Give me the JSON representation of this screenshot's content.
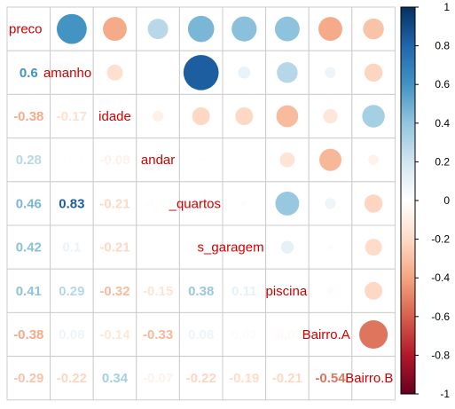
{
  "chart_data": {
    "type": "heatmap",
    "variables": [
      "preco",
      "tamanho",
      "idade",
      "andar",
      "n_quartos",
      "n_garagem",
      "piscina",
      "Bairro.A",
      "Bairro.B"
    ],
    "upper_method": "circle",
    "lower_method": "number",
    "matrix": [
      [
        1,
        0.6,
        -0.38,
        0.28,
        0.46,
        0.42,
        0.41,
        -0.38,
        -0.29
      ],
      [
        0.6,
        1,
        -0.17,
        0.01,
        0.83,
        0.1,
        0.29,
        0.08,
        -0.22
      ],
      [
        -0.38,
        -0.17,
        1,
        -0.08,
        -0.21,
        -0.21,
        -0.32,
        -0.14,
        0.34
      ],
      [
        0.28,
        0.01,
        -0.08,
        1,
        -0.01,
        0.0,
        -0.15,
        -0.33,
        -0.07
      ],
      [
        0.46,
        0.83,
        -0.21,
        -0.01,
        1,
        0.02,
        0.38,
        0.08,
        -0.22
      ],
      [
        0.42,
        0.1,
        -0.21,
        0.0,
        0.02,
        1,
        0.11,
        0.02,
        -0.19
      ],
      [
        0.41,
        0.29,
        -0.32,
        -0.15,
        0.38,
        0.11,
        1,
        -0.03,
        -0.21
      ],
      [
        -0.38,
        0.08,
        -0.14,
        -0.33,
        0.08,
        0.02,
        -0.03,
        1,
        -0.54
      ],
      [
        -0.29,
        -0.22,
        0.34,
        -0.07,
        -0.22,
        -0.19,
        -0.21,
        -0.54,
        1
      ]
    ],
    "shown_labels": {
      "preco": "preco",
      "tamanho": "amanho",
      "idade": "idade",
      "andar": "andar",
      "n_quartos": "_quartos",
      "n_garagem": "s_garagem",
      "piscina": "piscina",
      "Bairro.A": "Bairro.A",
      "Bairro.B": "Bairro.B"
    },
    "colorbar": {
      "range": [
        -1,
        1
      ],
      "ticks": [
        "1",
        "0.8",
        "0.6",
        "0.4",
        "0.2",
        "0",
        "-0.2",
        "-0.4",
        "-0.6",
        "-0.8",
        "-1"
      ],
      "colors": [
        "#67001F",
        "#B2182B",
        "#D6604D",
        "#F4A582",
        "#FDDBC7",
        "#FFFFFF",
        "#D1E5F0",
        "#92C5DE",
        "#4393C3",
        "#2166AC",
        "#053061"
      ]
    },
    "label_color": "#d00000",
    "grid_color": "#cccccc",
    "grid": true
  }
}
